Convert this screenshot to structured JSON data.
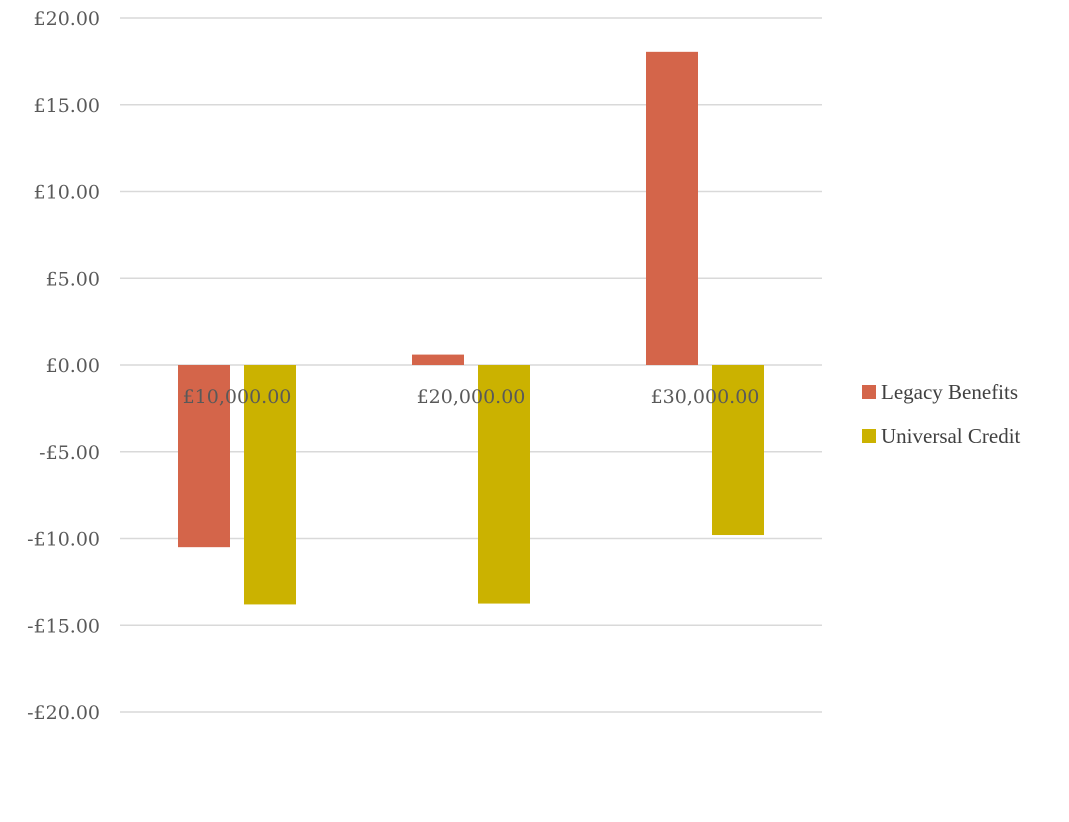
{
  "chart_data": {
    "type": "bar",
    "categories": [
      "£10,000.00",
      "£20,000.00",
      "£30,000.00"
    ],
    "series": [
      {
        "name": "Legacy Benefits",
        "values": [
          -10.5,
          0.6,
          18.05
        ],
        "color": "#d4654a"
      },
      {
        "name": "Universal Credit",
        "values": [
          -13.8,
          -13.75,
          -9.8
        ],
        "color": "#cbb200"
      }
    ],
    "ylim": [
      -20,
      20
    ],
    "yticks": [
      20,
      15,
      10,
      5,
      0,
      -5,
      -10,
      -15,
      -20
    ],
    "ytick_labels": [
      "£20.00",
      "£15.00",
      "£10.00",
      "£5.00",
      "£0.00",
      "-£5.00",
      "-£10.00",
      "-£15.00",
      "-£20.00"
    ],
    "grid": true,
    "legend_position": "right",
    "title": "",
    "xlabel": "",
    "ylabel": ""
  }
}
